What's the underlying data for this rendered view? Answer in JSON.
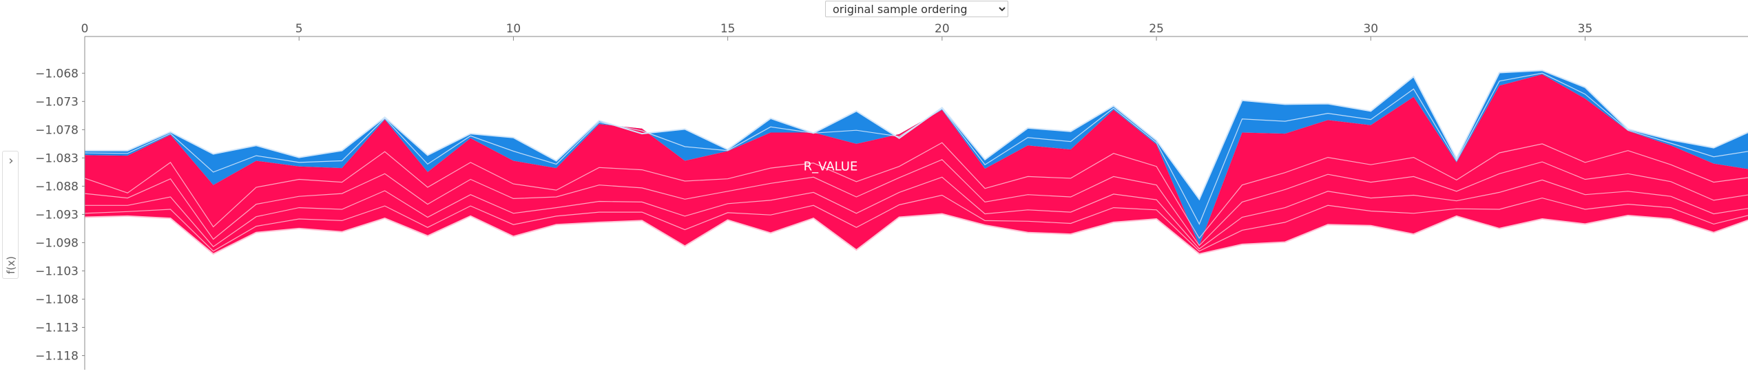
{
  "ordering": {
    "selected": "original sample ordering",
    "options": [
      "original sample ordering"
    ]
  },
  "yaxis_toggle": {
    "label": "f(x)",
    "icon": "chevron-right-icon"
  },
  "colors": {
    "positive": "#ff0d57",
    "negative": "#1e88e5",
    "positive_line": "#ffc3d5",
    "negative_line": "#d1e6fa",
    "axis": "#888888"
  },
  "chart_data": {
    "type": "area",
    "title": "",
    "xlabel": "",
    "ylabel": "f(x)",
    "xlim": [
      0,
      38.8
    ],
    "ylim": [
      -1.1205,
      -1.0615
    ],
    "xticks": [
      0,
      5,
      10,
      15,
      20,
      25,
      30,
      35
    ],
    "yticks": [
      -1.068,
      -1.073,
      -1.078,
      -1.083,
      -1.088,
      -1.093,
      -1.098,
      -1.103,
      -1.108,
      -1.113,
      -1.118
    ],
    "ytick_labels": [
      "−1.068",
      "−1.073",
      "−1.078",
      "−1.083",
      "−1.088",
      "−1.093",
      "−1.098",
      "−1.103",
      "−1.108",
      "−1.113",
      "−1.118"
    ],
    "x": [
      0,
      1,
      2,
      3,
      4,
      5,
      6,
      7,
      8,
      9,
      10,
      11,
      12,
      13,
      14,
      15,
      16,
      17,
      18,
      19,
      20,
      21,
      22,
      23,
      24,
      25,
      26,
      27,
      28,
      29,
      30,
      31,
      32,
      33,
      34,
      35,
      36,
      37,
      38,
      39
    ],
    "base": [
      -1.0935,
      -1.0933,
      -1.0937,
      -1.1,
      -1.0962,
      -1.0955,
      -1.0961,
      -1.0937,
      -1.0968,
      -1.0933,
      -1.0969,
      -1.0948,
      -1.0944,
      -1.0941,
      -1.0986,
      -1.094,
      -1.0963,
      -1.0937,
      -1.0993,
      -1.0935,
      -1.0929,
      -1.0949,
      -1.0962,
      -1.0965,
      -1.0944,
      -1.0938,
      -1.1,
      -1.0983,
      -1.0979,
      -1.0948,
      -1.095,
      -1.0965,
      -1.0933,
      -1.0955,
      -1.0938,
      -1.0947,
      -1.0932,
      -1.0938,
      -1.0962,
      -1.0935
    ],
    "output": [
      -1.0825,
      -1.0826,
      -1.0789,
      -1.0878,
      -1.0835,
      -1.0845,
      -1.0848,
      -1.0762,
      -1.0855,
      -1.0795,
      -1.0835,
      -1.0848,
      -1.077,
      -1.0778,
      -1.0835,
      -1.0818,
      -1.0785,
      -1.0785,
      -1.0805,
      -1.0788,
      -1.0745,
      -1.0849,
      -1.0808,
      -1.0815,
      -1.0745,
      -1.0806,
      -1.0985,
      -1.0785,
      -1.0787,
      -1.0763,
      -1.0772,
      -1.0722,
      -1.0838,
      -1.0702,
      -1.0682,
      -1.0725,
      -1.0782,
      -1.0808,
      -1.084,
      -1.0852
    ],
    "upper": [
      -1.0817,
      -1.0817,
      -1.0784,
      -1.0823,
      -1.0808,
      -1.0829,
      -1.0817,
      -1.0758,
      -1.0825,
      -1.0787,
      -1.0794,
      -1.0835,
      -1.0764,
      -1.0787,
      -1.0779,
      -1.0815,
      -1.076,
      -1.0786,
      -1.0747,
      -1.0795,
      -1.0741,
      -1.0833,
      -1.0777,
      -1.0783,
      -1.0738,
      -1.0799,
      -1.0903,
      -1.0728,
      -1.0735,
      -1.0734,
      -1.0747,
      -1.0686,
      -1.0831,
      -1.0679,
      -1.0675,
      -1.0705,
      -1.0779,
      -1.0798,
      -1.0812,
      -1.0778
    ],
    "positive_contribution_lines": [
      [
        -1.0866,
        -1.0892,
        -1.0838,
        -1.0952,
        -1.0882,
        -1.0868,
        -1.0873,
        -1.0819,
        -1.0882,
        -1.0838,
        -1.0876,
        -1.0887,
        -1.0847,
        -1.0851,
        -1.0871,
        -1.0867,
        -1.0848,
        -1.0839,
        -1.0872,
        -1.0845,
        -1.0803,
        -1.0884,
        -1.0863,
        -1.0866,
        -1.0822,
        -1.0845,
        -1.0972,
        -1.0878,
        -1.0856,
        -1.0829,
        -1.0842,
        -1.0829,
        -1.0869,
        -1.0821,
        -1.0805,
        -1.0838,
        -1.0817,
        -1.0842,
        -1.0873,
        -1.0863
      ],
      [
        -1.0893,
        -1.0901,
        -1.0867,
        -1.0974,
        -1.0912,
        -1.0898,
        -1.0893,
        -1.0858,
        -1.0912,
        -1.0868,
        -1.0902,
        -1.0899,
        -1.0878,
        -1.0883,
        -1.0903,
        -1.0889,
        -1.0875,
        -1.0864,
        -1.0899,
        -1.0865,
        -1.0833,
        -1.0908,
        -1.0895,
        -1.0899,
        -1.0863,
        -1.0878,
        -1.0985,
        -1.0908,
        -1.0886,
        -1.0859,
        -1.0873,
        -1.0863,
        -1.0889,
        -1.0858,
        -1.0837,
        -1.0868,
        -1.0858,
        -1.0872,
        -1.0905,
        -1.0893
      ],
      [
        -1.0914,
        -1.0914,
        -1.0899,
        -1.0987,
        -1.0934,
        -1.0918,
        -1.0921,
        -1.0888,
        -1.0935,
        -1.0895,
        -1.0928,
        -1.0918,
        -1.0907,
        -1.0908,
        -1.0933,
        -1.0911,
        -1.0905,
        -1.0891,
        -1.0928,
        -1.0891,
        -1.0864,
        -1.0929,
        -1.0922,
        -1.0926,
        -1.0894,
        -1.0904,
        -1.0991,
        -1.0935,
        -1.0918,
        -1.0889,
        -1.0901,
        -1.0896,
        -1.0906,
        -1.0891,
        -1.0869,
        -1.0895,
        -1.0889,
        -1.0898,
        -1.0929,
        -1.0917
      ],
      [
        -1.0928,
        -1.0925,
        -1.0921,
        -1.0995,
        -1.0951,
        -1.0938,
        -1.0941,
        -1.0915,
        -1.0953,
        -1.0915,
        -1.0948,
        -1.0933,
        -1.0926,
        -1.0926,
        -1.0957,
        -1.0927,
        -1.0931,
        -1.0914,
        -1.0953,
        -1.0913,
        -1.0896,
        -1.0941,
        -1.0942,
        -1.0946,
        -1.0918,
        -1.0922,
        -1.0995,
        -1.0958,
        -1.0944,
        -1.0914,
        -1.0924,
        -1.0928,
        -1.092,
        -1.0921,
        -1.0901,
        -1.0921,
        -1.0912,
        -1.0918,
        -1.0947,
        -1.0928
      ]
    ],
    "negative_contribution_lines": [
      [
        -1.0821,
        -1.0822,
        -1.0787,
        -1.0855,
        -1.0826,
        -1.0838,
        -1.0835,
        -1.076,
        -1.0841,
        -1.0791,
        -1.0818,
        -1.0841,
        -1.0767,
        -1.0782,
        -1.081,
        -1.0817,
        -1.0775,
        -1.0786,
        -1.0781,
        -1.0792,
        -1.0743,
        -1.0842,
        -1.0794,
        -1.0801,
        -1.0742,
        -1.0803,
        -1.0947,
        -1.0761,
        -1.0765,
        -1.0751,
        -1.0762,
        -1.0708,
        -1.0835,
        -1.0694,
        -1.068,
        -1.0717,
        -1.0781,
        -1.0804,
        -1.0828,
        -1.0816
      ]
    ],
    "annotations": [
      {
        "text": "R_VALUE",
        "x": 17.4,
        "y": -1.0845
      }
    ]
  }
}
